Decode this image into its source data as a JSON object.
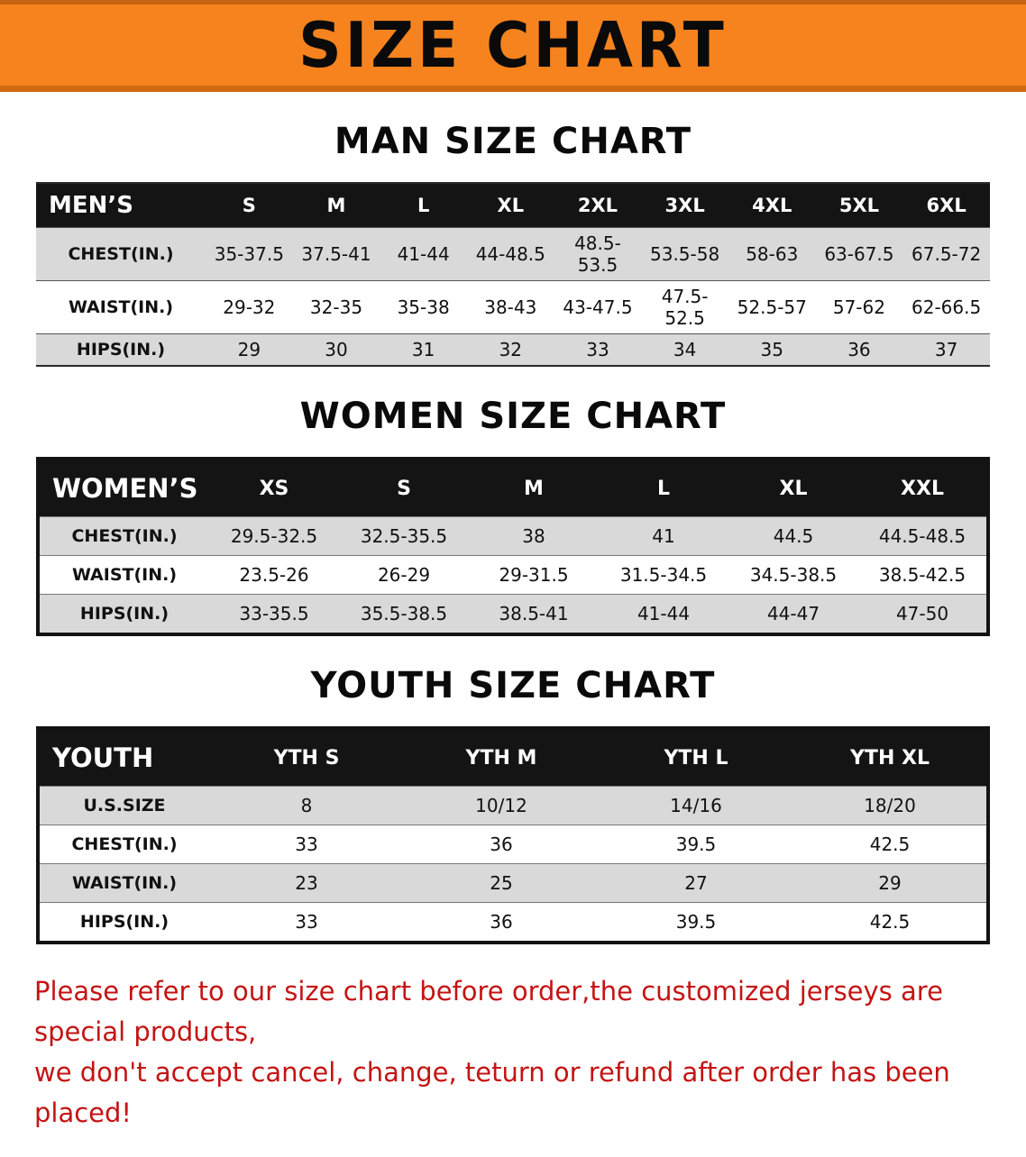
{
  "banner": {
    "title": "SIZE CHART"
  },
  "colors": {
    "banner_orange": "#f6831e",
    "table_header_black": "#141414",
    "row_stripe_gray": "#d9d9d9",
    "disclaimer_red": "#c41414"
  },
  "sections": [
    {
      "heading": "MAN SIZE CHART",
      "table_name": "mens-size-table",
      "style": "thin",
      "header": [
        "MEN’S",
        "S",
        "M",
        "L",
        "XL",
        "2XL",
        "3XL",
        "4XL",
        "5XL",
        "6XL"
      ],
      "rows": [
        [
          "CHEST(IN.)",
          "35-37.5",
          "37.5-41",
          "41-44",
          "44-48.5",
          "48.5-53.5",
          "53.5-58",
          "58-63",
          "63-67.5",
          "67.5-72"
        ],
        [
          "WAIST(IN.)",
          "29-32",
          "32-35",
          "35-38",
          "38-43",
          "43-47.5",
          "47.5-52.5",
          "52.5-57",
          "57-62",
          "62-66.5"
        ],
        [
          "HIPS(IN.)",
          "29",
          "30",
          "31",
          "32",
          "33",
          "34",
          "35",
          "36",
          "37"
        ]
      ]
    },
    {
      "heading": "WOMEN SIZE CHART",
      "table_name": "womens-size-table",
      "style": "thick",
      "header": [
        "WOMEN’S",
        "XS",
        "S",
        "M",
        "L",
        "XL",
        "XXL"
      ],
      "rows": [
        [
          "CHEST(IN.)",
          "29.5-32.5",
          "32.5-35.5",
          "38",
          "41",
          "44.5",
          "44.5-48.5"
        ],
        [
          "WAIST(IN.)",
          "23.5-26",
          "26-29",
          "29-31.5",
          "31.5-34.5",
          "34.5-38.5",
          "38.5-42.5"
        ],
        [
          "HIPS(IN.)",
          "33-35.5",
          "35.5-38.5",
          "38.5-41",
          "41-44",
          "44-47",
          "47-50"
        ]
      ]
    },
    {
      "heading": "YOUTH SIZE CHART",
      "table_name": "youth-size-table",
      "style": "thick",
      "header": [
        "YOUTH",
        "YTH S",
        "YTH M",
        "YTH L",
        "YTH XL"
      ],
      "rows": [
        [
          "U.S.SIZE",
          "8",
          "10/12",
          "14/16",
          "18/20"
        ],
        [
          "CHEST(IN.)",
          "33",
          "36",
          "39.5",
          "42.5"
        ],
        [
          "WAIST(IN.)",
          "23",
          "25",
          "27",
          "29"
        ],
        [
          "HIPS(IN.)",
          "33",
          "36",
          "39.5",
          "42.5"
        ]
      ]
    }
  ],
  "disclaimer": {
    "line1": "Please refer to our size chart before order,the customized jerseys are special products,",
    "line2": "we don't accept cancel, change, teturn or refund after order has been placed!"
  }
}
